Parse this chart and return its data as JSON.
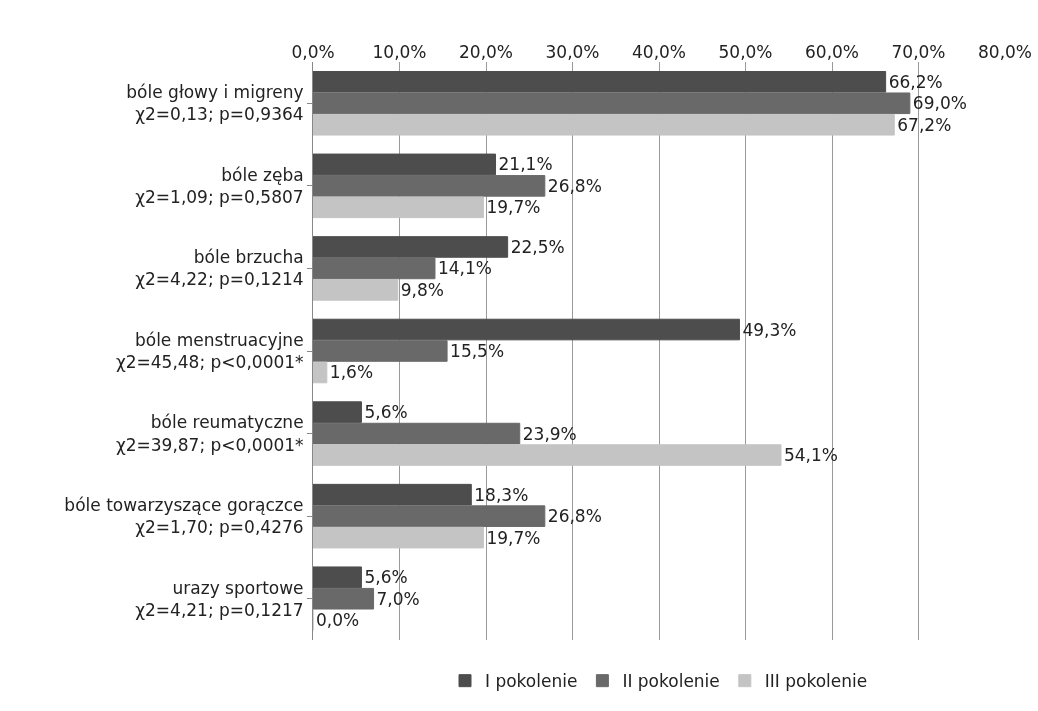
{
  "chart_data": {
    "type": "bar",
    "orientation": "horizontal",
    "categories": [
      "bóle głowy i migreny\nχ2=0,13; p=0,9364",
      "bóle zęba\nχ2=1,09; p=0,5807",
      "bóle brzucha\nχ2=4,22; p=0,1214",
      "bóle menstruacyjne\nχ2=45,48; p<0,0001*",
      "bóle reumatyczne\nχ2=39,87; p<0,0001*",
      "bóle towarzyszące gorączce\nχ2=1,70; p=0,4276",
      "urazy sportowe\nχ2=4,21; p=0,1217"
    ],
    "series": [
      {
        "name": "I pokolenie",
        "color": "#4d4d4d",
        "values": [
          66.2,
          21.1,
          22.5,
          49.3,
          5.6,
          18.3,
          5.6
        ],
        "value_labels": [
          "66,2%",
          "21,1%",
          "22,5%",
          "49,3%",
          "5,6%",
          "18,3%",
          "5,6%"
        ]
      },
      {
        "name": "II pokolenie",
        "color": "#696969",
        "values": [
          69.0,
          26.8,
          14.1,
          15.5,
          23.9,
          26.8,
          7.0
        ],
        "value_labels": [
          "69,0%",
          "26,8%",
          "14,1%",
          "15,5%",
          "23,9%",
          "26,8%",
          "7,0%"
        ]
      },
      {
        "name": "III pokolenie",
        "color": "#c4c4c4",
        "values": [
          67.2,
          19.7,
          9.8,
          1.6,
          54.1,
          19.7,
          0.0
        ],
        "value_labels": [
          "67,2%",
          "19,7%",
          "9,8%",
          "1,6%",
          "54,1%",
          "19,7%",
          "0,0%"
        ]
      }
    ],
    "xlim": [
      0,
      80
    ],
    "xticks": [
      {
        "value": 0,
        "label": "0,0%"
      },
      {
        "value": 10,
        "label": "10,0%"
      },
      {
        "value": 20,
        "label": "20,0%"
      },
      {
        "value": 30,
        "label": "30,0%"
      },
      {
        "value": 40,
        "label": "40,0%"
      },
      {
        "value": 50,
        "label": "50,0%"
      },
      {
        "value": 60,
        "label": "60,0%"
      },
      {
        "value": 70,
        "label": "70,0%"
      },
      {
        "value": 80,
        "label": "80,0%"
      }
    ],
    "grid": "x",
    "legend": "bottom"
  }
}
